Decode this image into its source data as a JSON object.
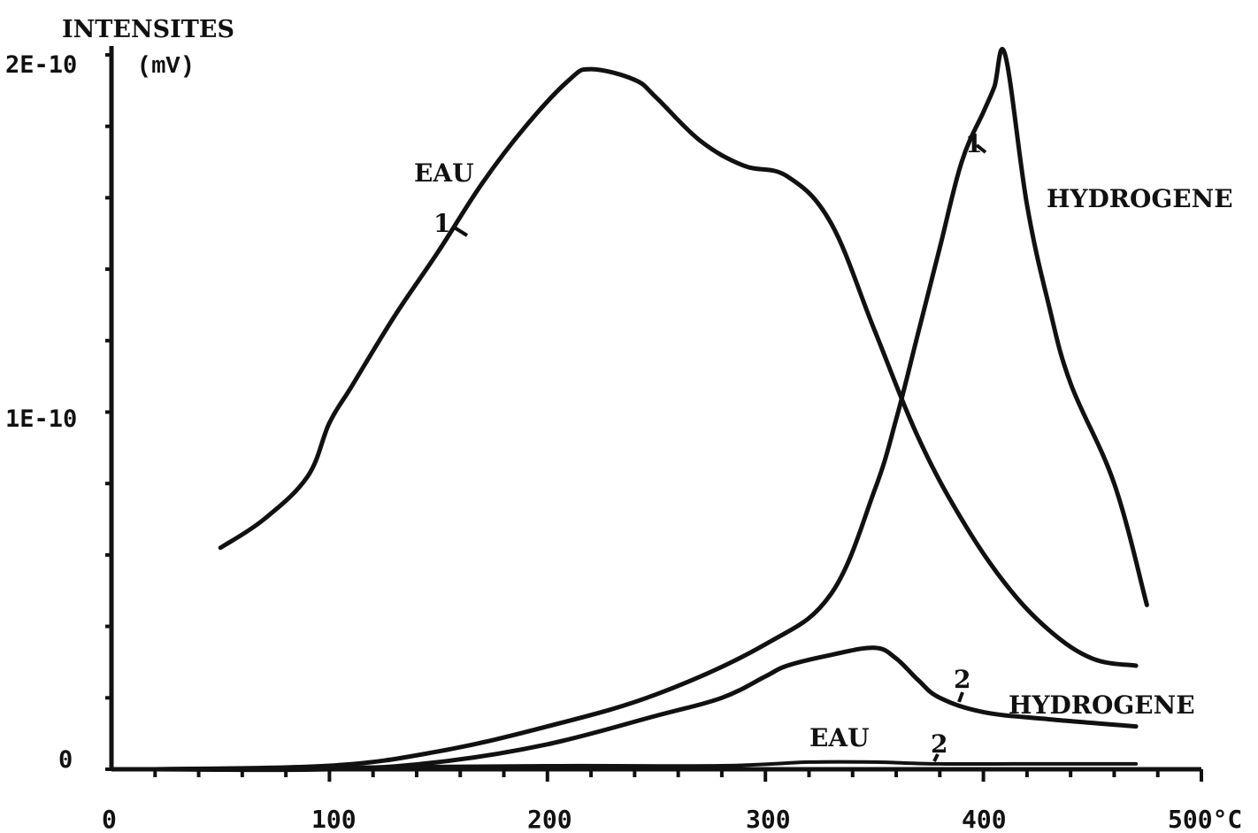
{
  "chart_data": {
    "type": "line",
    "ylabel": "INTENSITES",
    "yunit": "(mV)",
    "xlim": [
      0,
      500
    ],
    "ylim": [
      0,
      2e-10
    ],
    "x_ticks": [
      {
        "value": 0,
        "label": "0"
      },
      {
        "value": 100,
        "label": "100"
      },
      {
        "value": 200,
        "label": "200"
      },
      {
        "value": 300,
        "label": "300"
      },
      {
        "value": 400,
        "label": "400"
      },
      {
        "value": 500,
        "label": "500°C"
      }
    ],
    "y_ticks": [
      {
        "value": 0,
        "label": "0"
      },
      {
        "value": 1e-10,
        "label": "1E-10"
      },
      {
        "value": 2e-10,
        "label": "2E-10"
      }
    ],
    "grid": false,
    "series": [
      {
        "name": "EAU 1",
        "x": [
          50,
          70,
          90,
          100,
          110,
          130,
          150,
          170,
          190,
          210,
          220,
          240,
          250,
          270,
          290,
          310,
          330,
          350,
          370,
          390,
          410,
          430,
          450,
          470
        ],
        "y": [
          6.2e-11,
          7e-11,
          8.2e-11,
          9.7e-11,
          1.07e-10,
          1.27e-10,
          1.45e-10,
          1.64e-10,
          1.8e-10,
          1.93e-10,
          1.96e-10,
          1.93e-10,
          1.88e-10,
          1.76e-10,
          1.69e-10,
          1.66e-10,
          1.53e-10,
          1.23e-10,
          9.3e-11,
          7e-11,
          5.2e-11,
          3.9e-11,
          3.1e-11,
          2.9e-11
        ]
      },
      {
        "name": "HYDROGENE 1",
        "x": [
          20,
          100,
          150,
          200,
          250,
          300,
          330,
          350,
          360,
          370,
          380,
          390,
          400,
          405,
          410,
          420,
          430,
          440,
          460,
          475
        ],
        "y": [
          0.0,
          1e-12,
          5e-12,
          1.2e-11,
          2.1e-11,
          3.5e-11,
          4.9e-11,
          7.8e-11,
          9.8e-11,
          1.22e-10,
          1.46e-10,
          1.7e-10,
          1.84e-10,
          1.91e-10,
          2e-10,
          1.58e-10,
          1.3e-10,
          1.08e-10,
          8e-11,
          4.6e-11
        ]
      },
      {
        "name": "HYDROGENE 2",
        "x": [
          20,
          100,
          150,
          200,
          250,
          280,
          300,
          310,
          330,
          350,
          360,
          370,
          380,
          400,
          430,
          470
        ],
        "y": [
          0.0,
          0.0,
          2e-12,
          7e-12,
          1.5e-11,
          2e-11,
          2.6e-11,
          2.9e-11,
          3.2e-11,
          3.4e-11,
          3.1e-11,
          2.5e-11,
          2e-11,
          1.6e-11,
          1.4e-11,
          1.2e-11
        ]
      },
      {
        "name": "EAU 2",
        "x": [
          20,
          100,
          200,
          280,
          320,
          350,
          380,
          420,
          470
        ],
        "y": [
          0.0,
          5e-13,
          1e-12,
          1e-12,
          2e-12,
          2e-12,
          1.5e-12,
          1.5e-12,
          1.5e-12
        ]
      }
    ],
    "annotations": {
      "eau1_label": "EAU",
      "eau1_num": "1",
      "hydro1_label": "HYDROGENE",
      "hydro1_num": "1",
      "hydro2_label": "HYDROGENE",
      "hydro2_num": "2",
      "eau2_label": "EAU",
      "eau2_num": "2"
    }
  }
}
